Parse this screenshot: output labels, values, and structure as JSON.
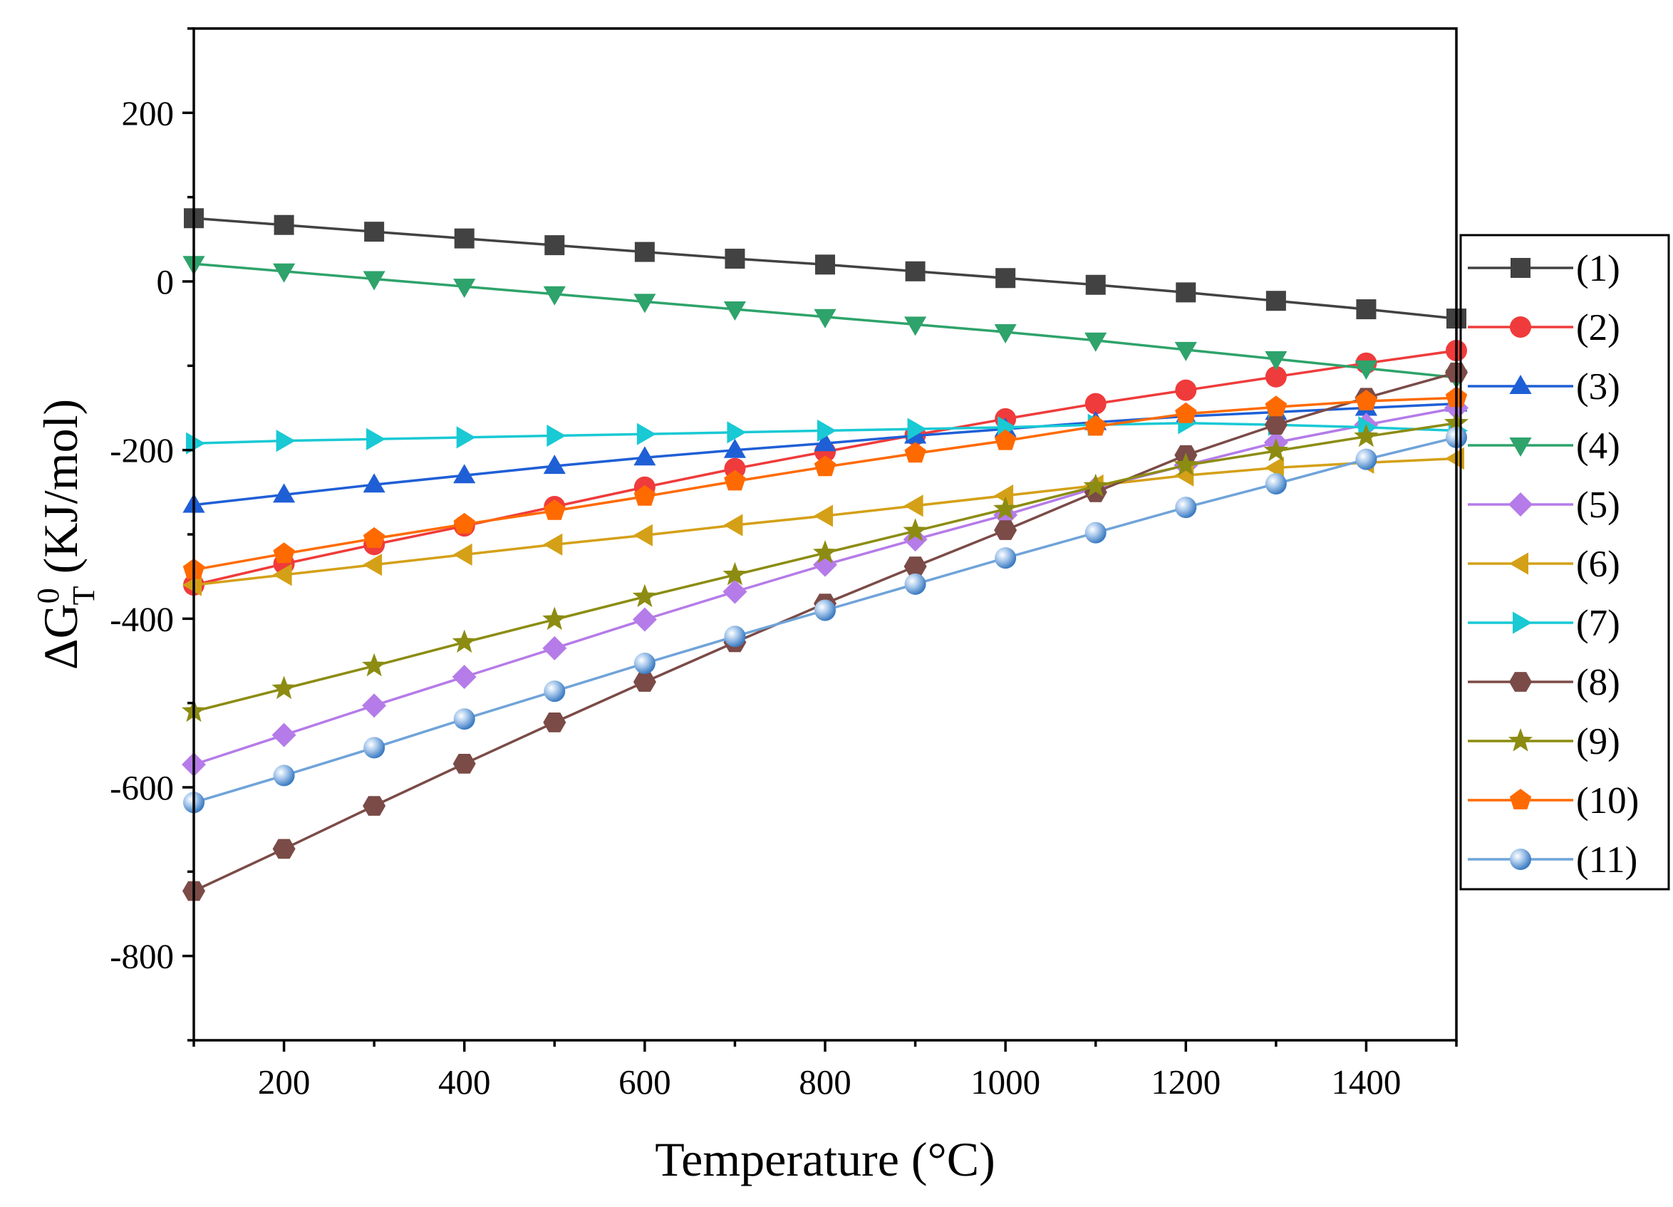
{
  "chart_data": {
    "type": "line",
    "title": "",
    "xlabel": "Temperature (°C)",
    "ylabel": {
      "prefix": "ΔG",
      "superscript": "0",
      "subscript": "T",
      "suffix": " (KJ/mol)"
    },
    "xlim": [
      100,
      1500
    ],
    "ylim": [
      -900,
      300
    ],
    "xticks": [
      200,
      400,
      600,
      800,
      1000,
      1200,
      1400
    ],
    "xtick_labels": [
      "200",
      "400",
      "600",
      "800",
      "1000",
      "1200",
      "1400"
    ],
    "yticks": [
      200,
      0,
      -200,
      -400,
      -600,
      -800
    ],
    "ytick_labels": [
      "200",
      "0",
      "-200",
      "-400",
      "-600",
      "-800"
    ],
    "grid": false,
    "legend_position": "right",
    "x": [
      100,
      200,
      300,
      400,
      500,
      600,
      700,
      800,
      900,
      1000,
      1100,
      1200,
      1300,
      1400,
      1500
    ],
    "series": [
      {
        "name": "(1)",
        "color": "#424242",
        "marker": "square",
        "values": [
          75,
          67,
          59,
          51,
          43,
          35,
          27,
          20,
          12,
          4,
          -4,
          -13,
          -23,
          -33,
          -44
        ]
      },
      {
        "name": "(2)",
        "color": "#ef3b3b",
        "marker": "circle",
        "values": [
          -360,
          -335,
          -312,
          -290,
          -267,
          -244,
          -222,
          -202,
          -182,
          -163,
          -145,
          -129,
          -113,
          -97,
          -82
        ]
      },
      {
        "name": "(3)",
        "color": "#1f5fd6",
        "marker": "triangle-up",
        "values": [
          -265,
          -253,
          -241,
          -230,
          -219,
          -209,
          -200,
          -192,
          -183,
          -175,
          -167,
          -160,
          -155,
          -150,
          -145
        ]
      },
      {
        "name": "(4)",
        "color": "#2ea36b",
        "marker": "triangle-down",
        "values": [
          21,
          12,
          3,
          -6,
          -15,
          -24,
          -33,
          -42,
          -51,
          -60,
          -70,
          -81,
          -92,
          -103,
          -114
        ]
      },
      {
        "name": "(5)",
        "color": "#b57be8",
        "marker": "diamond",
        "values": [
          -573,
          -538,
          -503,
          -469,
          -435,
          -401,
          -368,
          -336,
          -306,
          -277,
          -245,
          -218,
          -191,
          -170,
          -150
        ]
      },
      {
        "name": "(6)",
        "color": "#d4a017",
        "marker": "triangle-left",
        "values": [
          -360,
          -348,
          -336,
          -324,
          -312,
          -301,
          -289,
          -278,
          -266,
          -254,
          -242,
          -230,
          -221,
          -215,
          -210
        ]
      },
      {
        "name": "(7)",
        "color": "#19c9d4",
        "marker": "triangle-right",
        "values": [
          -192,
          -189,
          -187,
          -185,
          -183,
          -181,
          -179,
          -177,
          -175,
          -173,
          -170,
          -168,
          -170,
          -173,
          -177
        ]
      },
      {
        "name": "(8)",
        "color": "#7b4b47",
        "marker": "hexagon",
        "values": [
          -723,
          -673,
          -622,
          -572,
          -523,
          -475,
          -428,
          -382,
          -338,
          -295,
          -250,
          -206,
          -170,
          -138,
          -108
        ]
      },
      {
        "name": "(9)",
        "color": "#8c8c12",
        "marker": "star",
        "values": [
          -510,
          -483,
          -456,
          -428,
          -401,
          -374,
          -348,
          -322,
          -296,
          -270,
          -243,
          -218,
          -201,
          -184,
          -168
        ]
      },
      {
        "name": "(10)",
        "color": "#ff6a00",
        "marker": "pentagon",
        "values": [
          -342,
          -323,
          -305,
          -288,
          -272,
          -255,
          -237,
          -220,
          -204,
          -189,
          -172,
          -157,
          -149,
          -142,
          -138
        ]
      },
      {
        "name": "(11)",
        "color": "#6fa3d9",
        "marker": "sphere",
        "values": [
          -618,
          -586,
          -553,
          -519,
          -486,
          -453,
          -421,
          -390,
          -359,
          -328,
          -298,
          -268,
          -240,
          -211,
          -185
        ]
      }
    ]
  }
}
